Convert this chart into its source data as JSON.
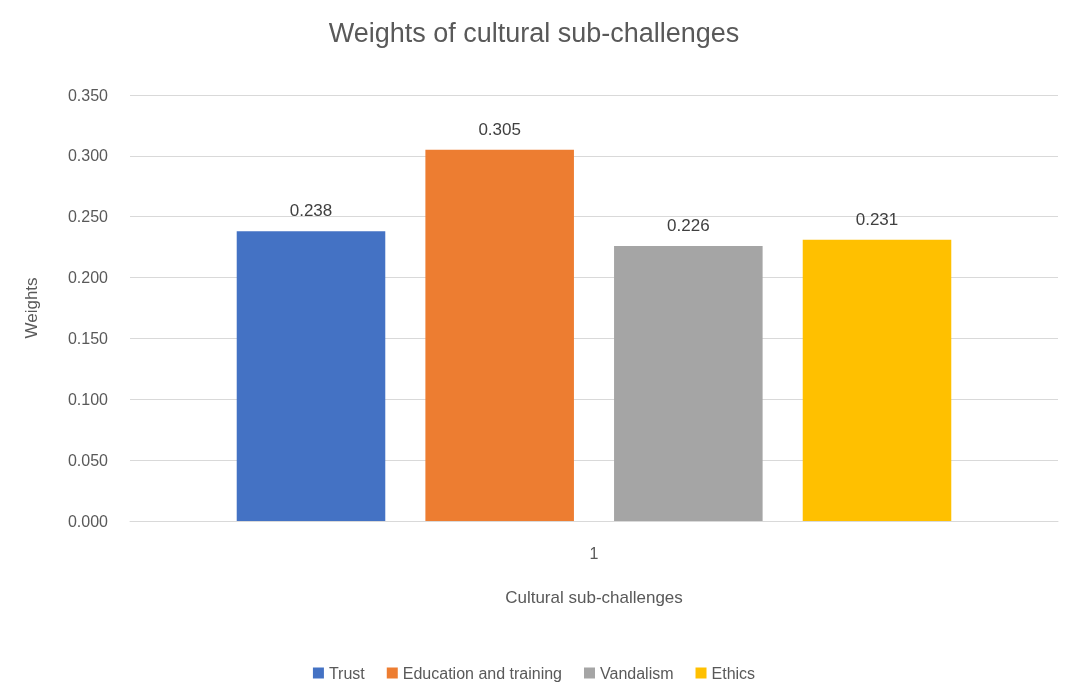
{
  "chart_data": {
    "type": "bar",
    "title": "Weights of cultural sub-challenges",
    "xlabel": "Cultural sub-challenges",
    "ylabel": "Weights",
    "categories": [
      "1"
    ],
    "series": [
      {
        "name": "Trust",
        "color": "#4472c4",
        "values": [
          0.238
        ]
      },
      {
        "name": "Education and training",
        "color": "#ed7d31",
        "values": [
          0.305
        ]
      },
      {
        "name": "Vandalism",
        "color": "#a5a5a5",
        "values": [
          0.226
        ]
      },
      {
        "name": "Ethics",
        "color": "#ffc000",
        "values": [
          0.231
        ]
      }
    ],
    "ylim": [
      0,
      0.35
    ],
    "yticks": [
      {
        "value": 0,
        "label": "0.000"
      },
      {
        "value": 0.05,
        "label": "0.050"
      },
      {
        "value": 0.1,
        "label": "0.100"
      },
      {
        "value": 0.15,
        "label": "0.150"
      },
      {
        "value": 0.2,
        "label": "0.200"
      },
      {
        "value": 0.25,
        "label": "0.250"
      },
      {
        "value": 0.3,
        "label": "0.300"
      },
      {
        "value": 0.35,
        "label": "0.350"
      }
    ],
    "grid": "y",
    "legend": "bottom",
    "data_labels": true
  }
}
